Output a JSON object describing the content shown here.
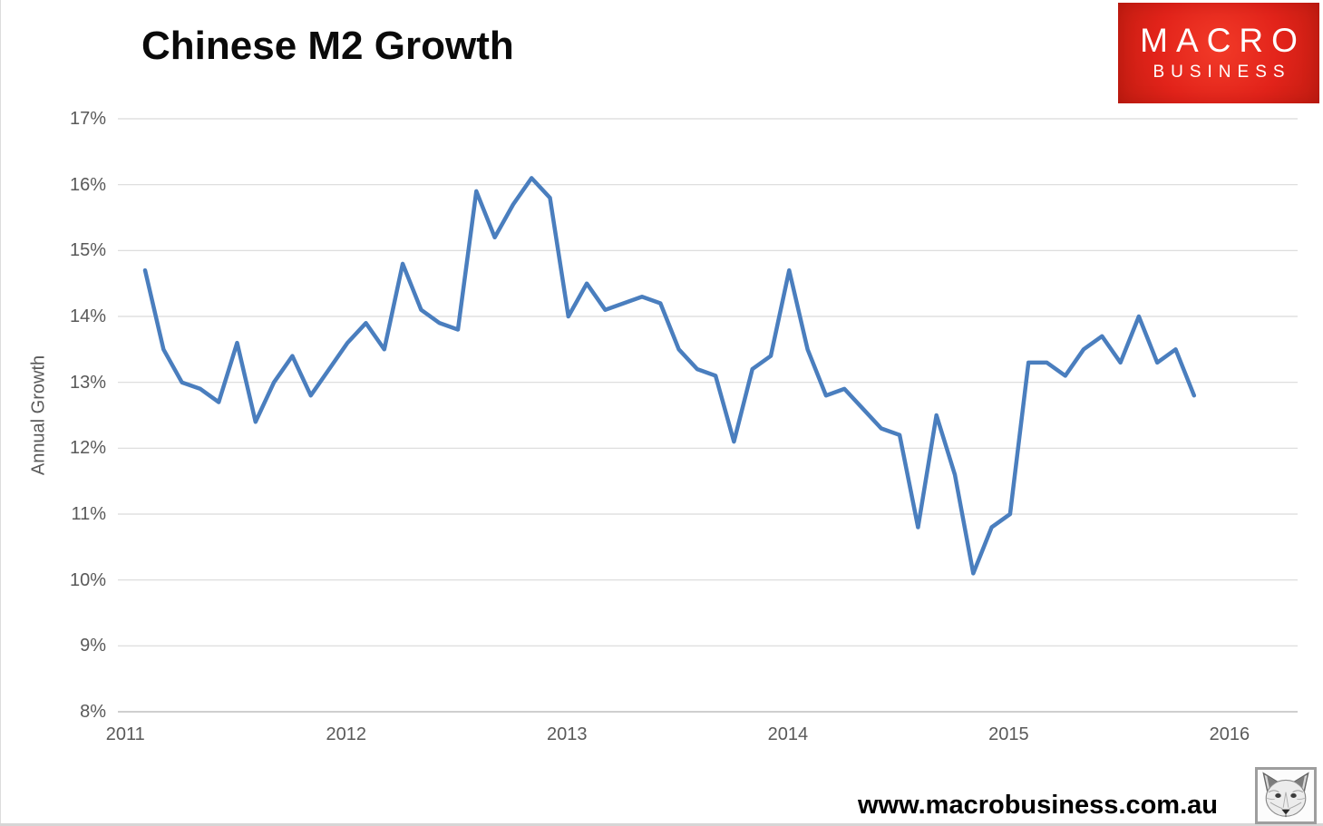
{
  "page": {
    "title": "Chinese M2 Growth",
    "footer_url": "www.macrobusiness.com.au"
  },
  "logo": {
    "text_top": "MACRO",
    "text_bottom": "BUSINESS",
    "bg_color": "#E2231A",
    "text_color": "#FFFFFF"
  },
  "icons": {
    "fox": "fox-sketch-logo"
  },
  "chart_data": {
    "type": "line",
    "title": "Chinese M2 Growth",
    "xlabel": "",
    "ylabel": "Annual Growth",
    "ylim": [
      8,
      17
    ],
    "ytick_step": 1,
    "grid": true,
    "legend": "none",
    "line_color": "#4A7EBE",
    "gridline_color": "#D9D9D9",
    "axis_line_color": "#BFBFBF",
    "axis_text_color": "#595959",
    "yticks": [
      "17%",
      "16%",
      "15%",
      "14%",
      "13%",
      "12%",
      "11%",
      "10%",
      "9%",
      "8%"
    ],
    "xticks": [
      "2011",
      "2012",
      "2013",
      "2014",
      "2015",
      "2016"
    ],
    "x": [
      "Jul 2011",
      "Aug 2011",
      "Sep 2011",
      "Oct 2011",
      "Nov 2011",
      "Dec 2011",
      "Jan 2012",
      "Feb 2012",
      "Mar 2012",
      "Apr 2012",
      "May 2012",
      "Jun 2012",
      "Jul 2012",
      "Aug 2012",
      "Sep 2012",
      "Oct 2012",
      "Nov 2012",
      "Dec 2012",
      "Jan 2013",
      "Feb 2013",
      "Mar 2013",
      "Apr 2013",
      "May 2013",
      "Jun 2013",
      "Jul 2013",
      "Aug 2013",
      "Sep 2013",
      "Oct 2013",
      "Nov 2013",
      "Dec 2013",
      "Jan 2014",
      "Feb 2014",
      "Mar 2014",
      "Apr 2014",
      "May 2014",
      "Jun 2014",
      "Jul 2014",
      "Aug 2014",
      "Sep 2014",
      "Oct 2014",
      "Nov 2014",
      "Dec 2014",
      "Jan 2015",
      "Feb 2015",
      "Mar 2015",
      "Apr 2015",
      "May 2015",
      "Jun 2015",
      "Jul 2015",
      "Aug 2015",
      "Sep 2015",
      "Oct 2015",
      "Nov 2015",
      "Dec 2015",
      "Jan 2016",
      "Feb 2016",
      "Mar 2016",
      "Apr 2016"
    ],
    "values": [
      14.7,
      13.5,
      13.0,
      12.9,
      12.7,
      13.6,
      12.4,
      13.0,
      13.4,
      12.8,
      13.2,
      13.6,
      13.9,
      13.5,
      14.8,
      14.1,
      13.9,
      13.8,
      15.9,
      15.2,
      15.7,
      16.1,
      15.8,
      14.0,
      14.5,
      14.1,
      14.2,
      14.3,
      14.2,
      13.5,
      13.2,
      13.1,
      12.1,
      13.2,
      13.4,
      14.7,
      13.5,
      12.8,
      12.9,
      12.6,
      12.3,
      12.2,
      10.8,
      12.5,
      11.6,
      10.1,
      10.8,
      11.0,
      13.3,
      13.3,
      13.1,
      13.5,
      13.7,
      13.3,
      14.0,
      13.3,
      13.5,
      12.8
    ]
  }
}
